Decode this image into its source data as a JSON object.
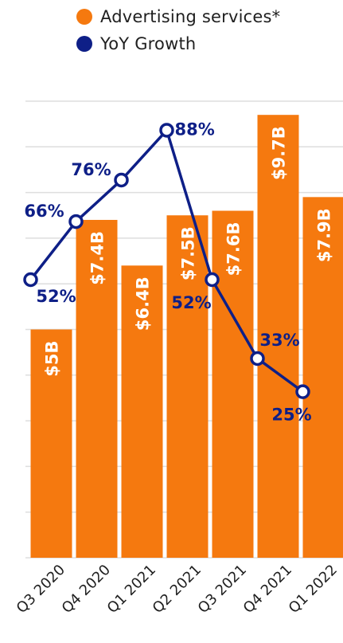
{
  "chart_data": {
    "type": "bar",
    "categories": [
      "Q3 2020",
      "Q4 2020",
      "Q1 2021",
      "Q2 2021",
      "Q3 2021",
      "Q4 2021",
      "Q1 2022"
    ],
    "bar_series": {
      "name": "Advertising services*",
      "values": [
        5.0,
        7.4,
        6.4,
        7.5,
        7.6,
        9.7,
        7.9
      ],
      "labels": [
        "$5B",
        "$7.4B",
        "$6.4B",
        "$7.5B",
        "$7.6B",
        "$9.7B",
        "$7.9B"
      ],
      "color": "#F5790F"
    },
    "line_series": {
      "name": "YoY Growth",
      "values": [
        52,
        66,
        76,
        88,
        52,
        33,
        25
      ],
      "labels": [
        "52%",
        "66%",
        "76%",
        "88%",
        "52%",
        "33%",
        "25%"
      ],
      "color": "#0E1F87"
    },
    "bar_ylim": [
      0,
      10
    ],
    "line_ylim": [
      -15,
      95
    ],
    "grid": true,
    "legend_position": "top"
  },
  "legend": {
    "bars": "Advertising services*",
    "line": "YoY Growth"
  }
}
